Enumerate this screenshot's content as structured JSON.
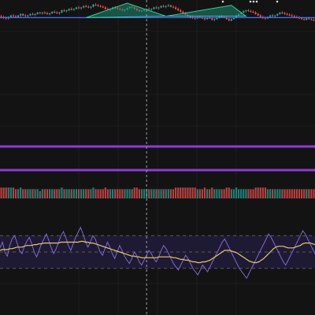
{
  "chart_data": [
    {
      "type": "candlestick",
      "title": "",
      "xlabel": "",
      "ylabel": "",
      "x_count": 130,
      "ylim": [
        0,
        100
      ],
      "candles": [
        [
          82,
          84,
          79,
          81
        ],
        [
          81,
          83,
          78,
          80
        ],
        [
          80,
          82,
          77,
          79
        ],
        [
          79,
          82,
          77,
          81
        ],
        [
          81,
          84,
          79,
          83
        ],
        [
          83,
          85,
          80,
          82
        ],
        [
          82,
          84,
          80,
          81
        ],
        [
          81,
          84,
          80,
          83
        ],
        [
          83,
          86,
          81,
          85
        ],
        [
          85,
          86,
          82,
          83
        ],
        [
          83,
          85,
          81,
          82
        ],
        [
          82,
          84,
          80,
          83
        ],
        [
          83,
          86,
          82,
          85
        ],
        [
          85,
          87,
          83,
          84
        ],
        [
          84,
          86,
          82,
          85
        ],
        [
          85,
          88,
          84,
          87
        ],
        [
          87,
          88,
          85,
          86
        ],
        [
          86,
          88,
          84,
          87
        ],
        [
          87,
          89,
          85,
          86
        ],
        [
          86,
          88,
          84,
          85
        ],
        [
          85,
          87,
          83,
          86
        ],
        [
          86,
          89,
          85,
          88
        ],
        [
          88,
          90,
          86,
          87
        ],
        [
          87,
          89,
          85,
          86
        ],
        [
          86,
          88,
          84,
          87
        ],
        [
          87,
          91,
          86,
          90
        ],
        [
          90,
          92,
          88,
          89
        ],
        [
          89,
          91,
          87,
          90
        ],
        [
          90,
          93,
          89,
          92
        ],
        [
          92,
          94,
          90,
          91
        ],
        [
          91,
          93,
          89,
          92
        ],
        [
          92,
          95,
          91,
          94
        ],
        [
          94,
          96,
          92,
          93
        ],
        [
          93,
          95,
          91,
          94
        ],
        [
          94,
          97,
          93,
          96
        ],
        [
          96,
          98,
          94,
          95
        ],
        [
          95,
          97,
          93,
          94
        ],
        [
          94,
          96,
          92,
          95
        ],
        [
          95,
          99,
          94,
          98
        ],
        [
          98,
          100,
          96,
          97
        ],
        [
          97,
          99,
          95,
          96
        ],
        [
          96,
          98,
          94,
          95
        ],
        [
          95,
          97,
          93,
          94
        ],
        [
          94,
          96,
          91,
          92
        ],
        [
          92,
          94,
          90,
          91
        ],
        [
          91,
          93,
          89,
          92
        ],
        [
          92,
          95,
          91,
          94
        ],
        [
          94,
          96,
          92,
          93
        ],
        [
          93,
          95,
          91,
          92
        ],
        [
          92,
          94,
          90,
          91
        ],
        [
          91,
          93,
          89,
          90
        ],
        [
          90,
          92,
          88,
          91
        ],
        [
          91,
          94,
          90,
          93
        ],
        [
          93,
          96,
          92,
          95
        ],
        [
          95,
          97,
          93,
          94
        ],
        [
          94,
          96,
          91,
          92
        ],
        [
          92,
          94,
          89,
          90
        ],
        [
          90,
          92,
          88,
          89
        ],
        [
          89,
          91,
          87,
          90
        ],
        [
          90,
          92,
          88,
          91
        ],
        [
          91,
          93,
          89,
          92
        ],
        [
          92,
          94,
          90,
          91
        ],
        [
          91,
          93,
          89,
          92
        ],
        [
          92,
          95,
          91,
          94
        ],
        [
          94,
          96,
          92,
          93
        ],
        [
          93,
          95,
          91,
          94
        ],
        [
          94,
          97,
          93,
          96
        ],
        [
          96,
          98,
          94,
          95
        ],
        [
          95,
          97,
          93,
          96
        ],
        [
          96,
          99,
          95,
          97
        ],
        [
          97,
          98,
          94,
          95
        ],
        [
          95,
          97,
          93,
          94
        ],
        [
          94,
          96,
          91,
          92
        ],
        [
          92,
          94,
          89,
          90
        ],
        [
          90,
          92,
          87,
          88
        ],
        [
          88,
          90,
          85,
          86
        ],
        [
          86,
          88,
          83,
          84
        ],
        [
          84,
          86,
          81,
          82
        ],
        [
          82,
          84,
          79,
          81
        ],
        [
          81,
          83,
          78,
          80
        ],
        [
          80,
          82,
          77,
          79
        ],
        [
          79,
          82,
          78,
          81
        ],
        [
          81,
          83,
          79,
          80
        ],
        [
          80,
          82,
          78,
          79
        ],
        [
          79,
          81,
          76,
          78
        ],
        [
          78,
          81,
          77,
          80
        ],
        [
          80,
          82,
          78,
          79
        ],
        [
          79,
          81,
          76,
          77
        ],
        [
          77,
          79,
          75,
          78
        ],
        [
          78,
          81,
          77,
          80
        ],
        [
          80,
          83,
          79,
          82
        ],
        [
          82,
          84,
          80,
          81
        ],
        [
          81,
          83,
          79,
          80
        ],
        [
          80,
          82,
          77,
          78
        ],
        [
          78,
          80,
          75,
          76
        ],
        [
          76,
          79,
          75,
          78
        ],
        [
          78,
          81,
          77,
          80
        ],
        [
          80,
          84,
          79,
          83
        ],
        [
          83,
          86,
          82,
          85
        ],
        [
          85,
          88,
          84,
          87
        ],
        [
          87,
          90,
          86,
          89
        ],
        [
          89,
          91,
          87,
          90
        ],
        [
          90,
          92,
          88,
          89
        ],
        [
          89,
          91,
          87,
          88
        ],
        [
          88,
          90,
          86,
          87
        ],
        [
          87,
          89,
          84,
          85
        ],
        [
          85,
          87,
          82,
          83
        ],
        [
          83,
          85,
          80,
          81
        ],
        [
          81,
          83,
          78,
          80
        ],
        [
          80,
          82,
          77,
          79
        ],
        [
          79,
          82,
          78,
          81
        ],
        [
          81,
          84,
          80,
          83
        ],
        [
          83,
          85,
          81,
          82
        ],
        [
          82,
          84,
          80,
          83
        ],
        [
          83,
          86,
          82,
          85
        ],
        [
          85,
          88,
          84,
          87
        ],
        [
          87,
          89,
          85,
          86
        ],
        [
          86,
          88,
          84,
          85
        ],
        [
          85,
          87,
          83,
          84
        ],
        [
          84,
          86,
          82,
          83
        ],
        [
          83,
          85,
          81,
          82
        ],
        [
          82,
          84,
          80,
          81
        ],
        [
          81,
          83,
          79,
          80
        ],
        [
          80,
          82,
          78,
          79
        ],
        [
          79,
          81,
          77,
          78
        ],
        [
          78,
          80,
          76,
          77
        ],
        [
          77,
          80,
          76,
          79
        ],
        [
          79,
          81,
          77,
          78
        ],
        [
          78,
          80,
          76,
          77
        ],
        [
          77,
          79,
          75,
          76
        ]
      ],
      "horizontal_level": 80,
      "patterns": [
        {
          "kind": "head-and-shoulders",
          "points": [
            [
              35,
              80
            ],
            [
              52,
              100
            ],
            [
              68,
              82
            ]
          ],
          "color": "#1f8a6e"
        },
        {
          "kind": "head-and-shoulders",
          "points": [
            [
              68,
              82
            ],
            [
              95,
              97
            ],
            [
              101,
              82
            ]
          ],
          "color": "#1f8a6e"
        }
      ],
      "colors": {
        "up": "#26a69a",
        "down": "#ef5350",
        "level_line": "#4c6ef5"
      }
    },
    {
      "type": "bar",
      "title": "",
      "series": [
        {
          "values_from": "candles"
        }
      ],
      "colors": {
        "up": "#26a69a",
        "down": "#ef5350"
      }
    },
    {
      "type": "line",
      "title": "",
      "ylim": [
        0,
        100
      ],
      "bands": {
        "upper": 70,
        "middle": 50,
        "lower": 30
      },
      "series": [
        {
          "values": [
            55,
            62,
            50,
            45,
            58,
            66,
            70,
            61,
            52,
            48,
            57,
            63,
            68,
            60,
            50,
            44,
            52,
            60,
            66,
            72,
            64,
            55,
            48,
            54,
            62,
            70,
            75,
            67,
            58,
            52,
            60,
            68,
            74,
            80,
            72,
            63,
            56,
            62,
            70,
            66,
            58,
            50,
            46,
            54,
            62,
            56,
            48,
            42,
            50,
            58,
            52,
            45,
            40,
            36,
            42,
            50,
            46,
            38,
            34,
            40,
            46,
            52,
            48,
            42,
            38,
            44,
            52,
            58,
            54,
            48,
            42,
            36,
            32,
            28,
            34,
            40,
            46,
            42,
            36,
            30,
            26,
            22,
            28,
            34,
            30,
            26,
            32,
            38,
            44,
            50,
            56,
            62,
            66,
            60,
            54,
            48,
            42,
            36,
            30,
            26,
            22,
            18,
            24,
            30,
            36,
            42,
            48,
            54,
            60,
            66,
            72,
            68,
            62,
            56,
            50,
            44,
            38,
            34,
            40,
            46,
            52,
            58,
            64,
            70,
            76,
            72,
            66,
            60,
            54,
            48
          ]
        },
        {
          "values": [
            52,
            53,
            53,
            53,
            54,
            54,
            55,
            56,
            56,
            56,
            57,
            58,
            58,
            58,
            59,
            59,
            60,
            60,
            61,
            61,
            61,
            61,
            61,
            61,
            61,
            62,
            62,
            62,
            62,
            62,
            62,
            62,
            62,
            63,
            63,
            62,
            62,
            61,
            61,
            60,
            59,
            58,
            57,
            56,
            55,
            54,
            53,
            52,
            51,
            50,
            49,
            48,
            47,
            46,
            45,
            45,
            44,
            44,
            43,
            43,
            43,
            43,
            43,
            43,
            43,
            44,
            44,
            44,
            44,
            44,
            44,
            43,
            43,
            42,
            41,
            41,
            40,
            40,
            39,
            38,
            38,
            37,
            37,
            38,
            38,
            39,
            40,
            42,
            44,
            46,
            48,
            50,
            52,
            52,
            52,
            51,
            50,
            49,
            47,
            45,
            43,
            41,
            39,
            38,
            37,
            37,
            38,
            40,
            42,
            45,
            48,
            51,
            54,
            56,
            57,
            57,
            57,
            56,
            55,
            55,
            55,
            56,
            57,
            58,
            60,
            61,
            61,
            61,
            60,
            59
          ]
        }
      ],
      "colors": {
        "line": "#7d6ad0",
        "average": "#e3c96b",
        "band_fill": "#1f1a33",
        "band_line": "#5a5a5a"
      }
    }
  ],
  "guides": [
    {
      "kind": "horizontal",
      "color": "#8e3bd1"
    },
    {
      "kind": "horizontal",
      "color": "#8e3bd1"
    }
  ],
  "crosshair": {
    "x_index": 60,
    "color": "#9aa0a6"
  },
  "icons": {
    "top_toolbar": "more-dots-icon"
  },
  "colors": {
    "background": "#131313",
    "grid": "#1e1e1e"
  }
}
